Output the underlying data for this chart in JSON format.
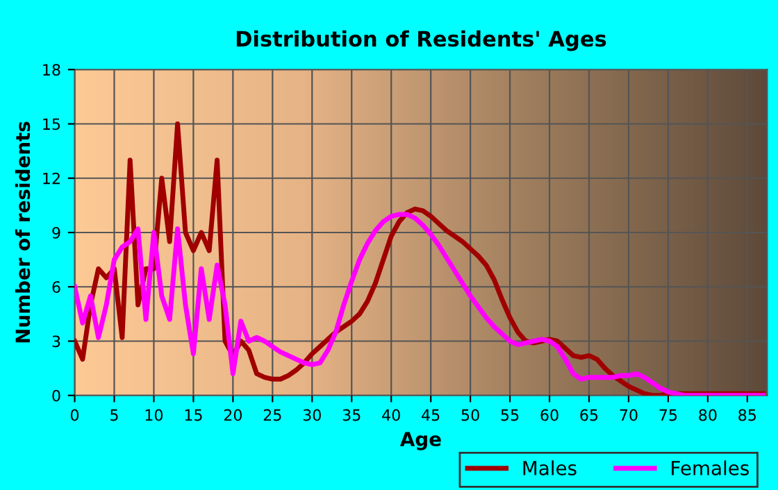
{
  "chart_data": {
    "type": "line",
    "title": "Distribution of Residents' Ages",
    "xlabel": "Age",
    "ylabel": "Number of residents",
    "x": [
      0,
      1,
      2,
      3,
      4,
      5,
      6,
      7,
      8,
      9,
      10,
      11,
      12,
      13,
      14,
      15,
      16,
      17,
      18,
      19,
      20,
      21,
      22,
      23,
      24,
      25,
      26,
      27,
      28,
      29,
      30,
      31,
      32,
      33,
      34,
      35,
      36,
      37,
      38,
      39,
      40,
      41,
      42,
      43,
      44,
      45,
      46,
      47,
      48,
      49,
      50,
      51,
      52,
      53,
      54,
      55,
      56,
      57,
      58,
      59,
      60,
      61,
      62,
      63,
      64,
      65,
      66,
      67,
      68,
      69,
      70,
      71,
      72,
      73,
      74,
      75,
      76,
      77,
      78,
      79,
      80,
      81,
      82,
      83,
      84,
      85,
      86,
      87
    ],
    "series": [
      {
        "name": "Males",
        "color": "#a00000",
        "values": [
          3,
          2,
          5,
          7,
          6.5,
          7,
          3.2,
          13,
          5,
          7,
          7,
          12,
          8.5,
          15,
          9,
          8,
          9,
          8,
          13,
          3,
          2.2,
          3,
          2.5,
          1.2,
          1,
          0.9,
          0.9,
          1.1,
          1.4,
          1.8,
          2.3,
          2.7,
          3.1,
          3.5,
          3.8,
          4.1,
          4.5,
          5.2,
          6.2,
          7.5,
          8.8,
          9.6,
          10.1,
          10.3,
          10.2,
          9.9,
          9.5,
          9.1,
          8.8,
          8.5,
          8.1,
          7.7,
          7.2,
          6.4,
          5.3,
          4.3,
          3.5,
          3,
          2.9,
          3,
          3.1,
          3,
          2.6,
          2.2,
          2.1,
          2.2,
          2,
          1.5,
          1.1,
          0.8,
          0.5,
          0.3,
          0.1,
          0,
          0,
          0.1,
          0.1,
          0.1,
          0.1,
          0.1,
          0.1,
          0.1,
          0.1,
          0.1,
          0.1,
          0.1,
          0.1,
          0.1
        ]
      },
      {
        "name": "Females",
        "color": "#ff00ff",
        "values": [
          6,
          4,
          5.5,
          3.2,
          5,
          7.5,
          8.2,
          8.5,
          9.2,
          4.2,
          9,
          5.5,
          4.2,
          9.2,
          5,
          2.3,
          7,
          4.2,
          7.2,
          5,
          1.2,
          4.1,
          3,
          3.2,
          3,
          2.7,
          2.4,
          2.2,
          2,
          1.8,
          1.7,
          1.8,
          2.5,
          3.5,
          5,
          6.3,
          7.5,
          8.4,
          9.1,
          9.6,
          9.9,
          10,
          10,
          9.8,
          9.4,
          8.9,
          8.3,
          7.6,
          6.9,
          6.2,
          5.5,
          4.9,
          4.3,
          3.8,
          3.4,
          3,
          2.8,
          2.9,
          3,
          3.1,
          3,
          2.7,
          2,
          1.2,
          0.9,
          1,
          1,
          1,
          1,
          1.1,
          1.1,
          1.2,
          1,
          0.7,
          0.4,
          0.2,
          0.1,
          0,
          0,
          0,
          0,
          0,
          0,
          0,
          0,
          0,
          0,
          0
        ]
      }
    ],
    "xlim": [
      0,
      87.5
    ],
    "xticks": [
      0,
      5,
      10,
      15,
      20,
      25,
      30,
      35,
      40,
      45,
      50,
      55,
      60,
      65,
      70,
      75,
      80,
      85
    ],
    "ylim": [
      0,
      18
    ],
    "yticks": [
      0,
      3,
      6,
      9,
      12,
      15,
      18
    ],
    "grid": true,
    "legend": "bottom right",
    "line_style": "solid",
    "marker": "none"
  }
}
